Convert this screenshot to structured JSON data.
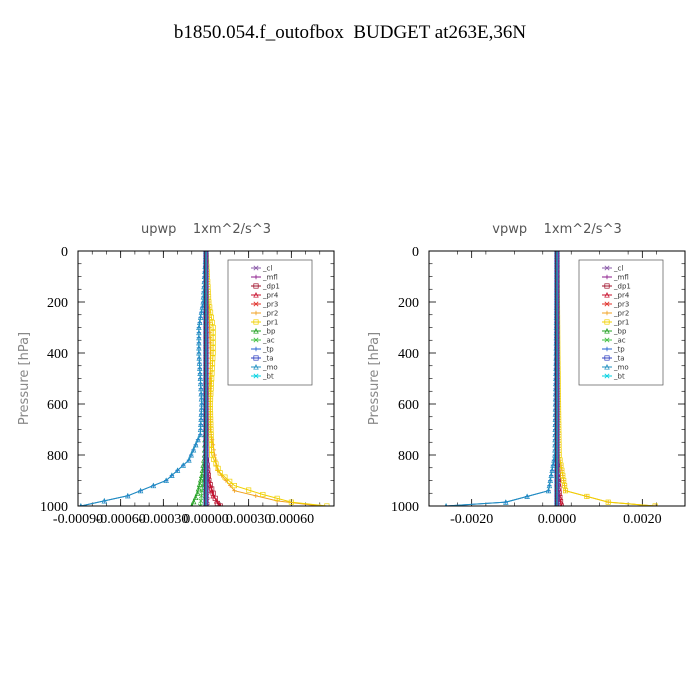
{
  "title": "b1850.054.f_outofbox  BUDGET at263E,36N",
  "series_meta": [
    {
      "name": "_cl",
      "color": "#8a5aa8"
    },
    {
      "name": "_mfl",
      "color": "#8b1a8b"
    },
    {
      "name": "_dp1",
      "color": "#a0102a"
    },
    {
      "name": "_pr4",
      "color": "#c8102e"
    },
    {
      "name": "_pr3",
      "color": "#e0302a"
    },
    {
      "name": "_pr2",
      "color": "#f0a020"
    },
    {
      "name": "_pr1",
      "color": "#f0d000"
    },
    {
      "name": "_bp",
      "color": "#20a020"
    },
    {
      "name": "_ac",
      "color": "#40c040"
    },
    {
      "name": "_tp",
      "color": "#2060d0"
    },
    {
      "name": "_ta",
      "color": "#3040c0"
    },
    {
      "name": "_mo",
      "color": "#2090c0"
    },
    {
      "name": "_bt",
      "color": "#00d0e0"
    }
  ],
  "chart_data": [
    {
      "type": "line",
      "title": "upwp    1xm^2/s^3",
      "ylabel": "Pressure [hPa]",
      "xlim": [
        -0.0009,
        0.0009
      ],
      "ylim": [
        1000,
        0
      ],
      "xticks": [
        -0.0009,
        -0.0006,
        -0.0003,
        0.0,
        0.0003,
        0.0006
      ],
      "xtick_labels": [
        "-0.00090",
        "-0.00060",
        "-0.00030",
        "0.00000",
        "0.00030",
        "0.00060"
      ],
      "yticks": [
        0,
        200,
        400,
        600,
        800,
        1000
      ],
      "legend_position": "top-right",
      "series": [
        {
          "name": "_cl",
          "points": [
            [
              0,
              0
            ],
            [
              0,
              200
            ],
            [
              0,
              400
            ],
            [
              0,
              600
            ],
            [
              0,
              800
            ],
            [
              0,
              1000
            ]
          ]
        },
        {
          "name": "_mfl",
          "points": [
            [
              0,
              0
            ],
            [
              0,
              200
            ],
            [
              0,
              400
            ],
            [
              0,
              600
            ],
            [
              0,
              800
            ],
            [
              0,
              1000
            ]
          ]
        },
        {
          "name": "_dp1",
          "points": [
            [
              0,
              0
            ],
            [
              0,
              200
            ],
            [
              0,
              400
            ],
            [
              0,
              600
            ],
            [
              0,
              800
            ],
            [
              2e-05,
              900
            ],
            [
              5e-05,
              950
            ],
            [
              8e-05,
              990
            ],
            [
              0.0001,
              1000
            ]
          ]
        },
        {
          "name": "_pr4",
          "points": [
            [
              0,
              0
            ],
            [
              0,
              200
            ],
            [
              0,
              400
            ],
            [
              0,
              600
            ],
            [
              0,
              800
            ],
            [
              2e-05,
              900
            ],
            [
              5e-05,
              960
            ],
            [
              0.0001,
              1000
            ]
          ]
        },
        {
          "name": "_pr3",
          "points": [
            [
              0,
              0
            ],
            [
              0,
              400
            ],
            [
              0,
              800
            ],
            [
              1e-05,
              1000
            ]
          ]
        },
        {
          "name": "_pr2",
          "points": [
            [
              0,
              0
            ],
            [
              2e-05,
              200
            ],
            [
              3e-05,
              400
            ],
            [
              3e-05,
              700
            ],
            [
              8e-05,
              860
            ],
            [
              0.0002,
              940
            ],
            [
              0.0005,
              980
            ],
            [
              0.0008,
              1000
            ]
          ]
        },
        {
          "name": "_pr1",
          "points": [
            [
              0,
              0
            ],
            [
              2e-05,
              200
            ],
            [
              5e-05,
              300
            ],
            [
              5e-05,
              400
            ],
            [
              3e-05,
              600
            ],
            [
              4e-05,
              800
            ],
            [
              0.0001,
              870
            ],
            [
              0.0002,
              920
            ],
            [
              0.0004,
              955
            ],
            [
              0.0006,
              985
            ],
            [
              0.00085,
              1000
            ]
          ]
        },
        {
          "name": "_bp",
          "points": [
            [
              0,
              0
            ],
            [
              0,
              600
            ],
            [
              -1e-05,
              800
            ],
            [
              -3e-05,
              880
            ],
            [
              -6e-05,
              950
            ],
            [
              -0.0001,
              1000
            ]
          ]
        },
        {
          "name": "_ac",
          "points": [
            [
              0,
              0
            ],
            [
              0,
              800
            ],
            [
              -2e-05,
              900
            ],
            [
              -4e-05,
              1000
            ]
          ]
        },
        {
          "name": "_tp",
          "points": [
            [
              0,
              0
            ],
            [
              -2e-05,
              200
            ],
            [
              -5e-05,
              300
            ],
            [
              -5e-05,
              400
            ],
            [
              -3e-05,
              600
            ],
            [
              -4e-05,
              720
            ],
            [
              -0.00012,
              820
            ],
            [
              -0.00028,
              900
            ],
            [
              -0.00055,
              960
            ],
            [
              -0.00088,
              1000
            ]
          ]
        },
        {
          "name": "_ta",
          "points": [
            [
              0,
              0
            ],
            [
              0,
              400
            ],
            [
              0,
              800
            ],
            [
              0,
              1000
            ]
          ]
        },
        {
          "name": "_mo",
          "points": [
            [
              0,
              0
            ],
            [
              -2e-05,
              200
            ],
            [
              -5e-05,
              300
            ],
            [
              -5e-05,
              400
            ],
            [
              -3e-05,
              600
            ],
            [
              -4e-05,
              720
            ],
            [
              -0.00012,
              820
            ],
            [
              -0.00028,
              900
            ],
            [
              -0.00055,
              960
            ],
            [
              -0.00088,
              1000
            ]
          ]
        },
        {
          "name": "_bt",
          "points": [
            [
              0,
              0
            ],
            [
              0,
              1000
            ]
          ]
        }
      ]
    },
    {
      "type": "line",
      "title": "vpwp    1xm^2/s^3",
      "ylabel": "Pressure [hPa]",
      "xlim": [
        -0.003,
        0.003
      ],
      "ylim": [
        1000,
        0
      ],
      "xticks": [
        -0.002,
        0.0,
        0.002
      ],
      "xtick_labels": [
        "-0.0020",
        "0.0000",
        "0.0020"
      ],
      "yticks": [
        0,
        200,
        400,
        600,
        800,
        1000
      ],
      "legend_position": "top-right",
      "series": [
        {
          "name": "_cl",
          "points": [
            [
              0,
              0
            ],
            [
              0,
              1000
            ]
          ]
        },
        {
          "name": "_mfl",
          "points": [
            [
              0,
              0
            ],
            [
              0,
              1000
            ]
          ]
        },
        {
          "name": "_dp1",
          "points": [
            [
              0,
              0
            ],
            [
              0,
              800
            ],
            [
              5e-05,
              950
            ],
            [
              0.0001,
              1000
            ]
          ]
        },
        {
          "name": "_pr4",
          "points": [
            [
              0,
              0
            ],
            [
              0,
              800
            ],
            [
              5e-05,
              950
            ],
            [
              0.0001,
              1000
            ]
          ]
        },
        {
          "name": "_pr3",
          "points": [
            [
              0,
              0
            ],
            [
              0,
              1000
            ]
          ]
        },
        {
          "name": "_pr2",
          "points": [
            [
              0,
              0
            ],
            [
              2e-05,
              400
            ],
            [
              5e-05,
              800
            ],
            [
              0.0002,
              940
            ],
            [
              0.0012,
              985
            ],
            [
              0.0023,
              1000
            ]
          ]
        },
        {
          "name": "_pr1",
          "points": [
            [
              0,
              0
            ],
            [
              2e-05,
              400
            ],
            [
              5e-05,
              800
            ],
            [
              0.0002,
              940
            ],
            [
              0.0012,
              985
            ],
            [
              0.0023,
              1000
            ]
          ]
        },
        {
          "name": "_bp",
          "points": [
            [
              0,
              0
            ],
            [
              0,
              1000
            ]
          ]
        },
        {
          "name": "_ac",
          "points": [
            [
              0,
              0
            ],
            [
              0,
              1000
            ]
          ]
        },
        {
          "name": "_tp",
          "points": [
            [
              0,
              0
            ],
            [
              -2e-05,
              400
            ],
            [
              -5e-05,
              800
            ],
            [
              -0.0002,
              940
            ],
            [
              -0.0012,
              985
            ],
            [
              -0.0026,
              1000
            ]
          ]
        },
        {
          "name": "_ta",
          "points": [
            [
              0,
              0
            ],
            [
              0,
              1000
            ]
          ]
        },
        {
          "name": "_mo",
          "points": [
            [
              0,
              0
            ],
            [
              -2e-05,
              400
            ],
            [
              -5e-05,
              800
            ],
            [
              -0.0002,
              940
            ],
            [
              -0.0012,
              985
            ],
            [
              -0.0026,
              1000
            ]
          ]
        },
        {
          "name": "_bt",
          "points": [
            [
              0,
              0
            ],
            [
              0,
              1000
            ]
          ]
        }
      ]
    }
  ]
}
